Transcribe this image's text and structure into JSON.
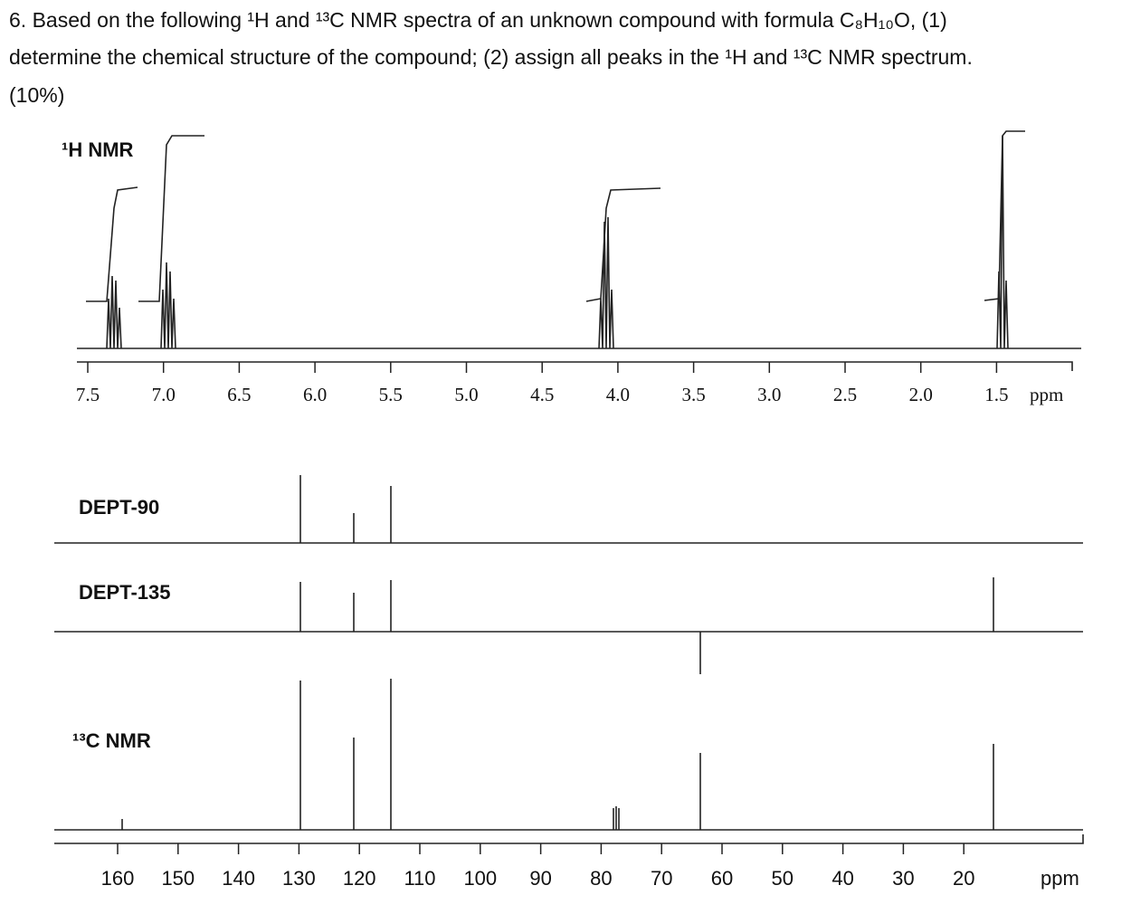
{
  "question": {
    "lines": [
      "6. Based on the following ¹H and ¹³C NMR spectra of an unknown compound with formula C₈H₁₀O, (1)",
      "determine the chemical structure of the compound; (2) assign all peaks in the ¹H and ¹³C NMR spectrum.",
      "(10%)"
    ]
  },
  "spectra": {
    "h1": {
      "label": "¹H NMR",
      "ticks": [
        "7.5",
        "7.0",
        "6.5",
        "6.0",
        "5.5",
        "5.0",
        "4.5",
        "4.0",
        "3.5",
        "3.0",
        "2.5",
        "2.0",
        "1.5"
      ],
      "unit": "ppm"
    },
    "dept90": {
      "label": "DEPT-90"
    },
    "dept135": {
      "label": "DEPT-135"
    },
    "c13": {
      "label": "¹³C NMR",
      "ticks": [
        "160",
        "150",
        "140",
        "130",
        "120",
        "110",
        "100",
        "90",
        "80",
        "70",
        "60",
        "50",
        "40",
        "30",
        "20"
      ],
      "unit": "ppm"
    }
  }
}
